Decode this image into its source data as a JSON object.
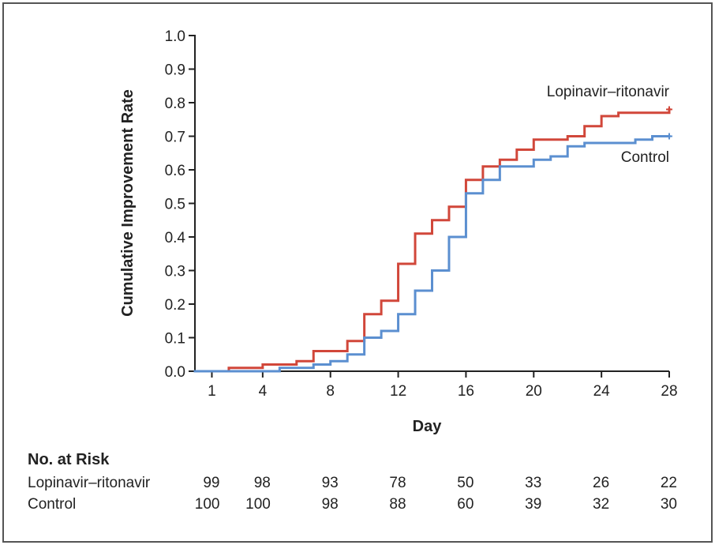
{
  "chart_data": {
    "type": "line",
    "step": true,
    "xlabel": "Day",
    "ylabel": "Cumulative Improvement Rate",
    "xlim": [
      0,
      28
    ],
    "ylim": [
      0,
      1.0
    ],
    "x_ticks": [
      1,
      4,
      8,
      12,
      16,
      20,
      24,
      28
    ],
    "y_ticks": [
      "0.0",
      "0.1",
      "0.2",
      "0.3",
      "0.4",
      "0.5",
      "0.6",
      "0.7",
      "0.8",
      "0.9",
      "1.0"
    ],
    "grid": false,
    "legend": "inline labels at line ends",
    "series": [
      {
        "name": "Lopinavir–ritonavir",
        "color": "#d1473a",
        "censor_mark": "+",
        "points": [
          [
            0,
            0.0
          ],
          [
            2,
            0.01
          ],
          [
            4,
            0.02
          ],
          [
            6,
            0.03
          ],
          [
            7,
            0.06
          ],
          [
            9,
            0.09
          ],
          [
            10,
            0.17
          ],
          [
            11,
            0.21
          ],
          [
            12,
            0.32
          ],
          [
            13,
            0.41
          ],
          [
            14,
            0.45
          ],
          [
            15,
            0.49
          ],
          [
            16,
            0.57
          ],
          [
            17,
            0.61
          ],
          [
            18,
            0.63
          ],
          [
            19,
            0.66
          ],
          [
            20,
            0.69
          ],
          [
            22,
            0.7
          ],
          [
            23,
            0.73
          ],
          [
            24,
            0.76
          ],
          [
            25,
            0.77
          ],
          [
            28,
            0.78
          ]
        ]
      },
      {
        "name": "Control",
        "color": "#5b8fd0",
        "censor_mark": "+",
        "points": [
          [
            0,
            0.0
          ],
          [
            5,
            0.01
          ],
          [
            7,
            0.02
          ],
          [
            8,
            0.03
          ],
          [
            9,
            0.05
          ],
          [
            10,
            0.1
          ],
          [
            11,
            0.12
          ],
          [
            12,
            0.17
          ],
          [
            13,
            0.24
          ],
          [
            14,
            0.3
          ],
          [
            15,
            0.4
          ],
          [
            16,
            0.53
          ],
          [
            17,
            0.57
          ],
          [
            18,
            0.61
          ],
          [
            20,
            0.63
          ],
          [
            21,
            0.64
          ],
          [
            22,
            0.67
          ],
          [
            23,
            0.68
          ],
          [
            26,
            0.69
          ],
          [
            27,
            0.7
          ],
          [
            28,
            0.7
          ]
        ]
      }
    ],
    "risk_table": {
      "header": "No. at Risk",
      "rows": [
        {
          "label": "Lopinavir–ritonavir",
          "values": [
            "99",
            "98",
            "93",
            "78",
            "50",
            "33",
            "26",
            "22"
          ]
        },
        {
          "label": "Control",
          "values": [
            "100",
            "100",
            "98",
            "88",
            "60",
            "39",
            "32",
            "30"
          ]
        }
      ]
    }
  }
}
